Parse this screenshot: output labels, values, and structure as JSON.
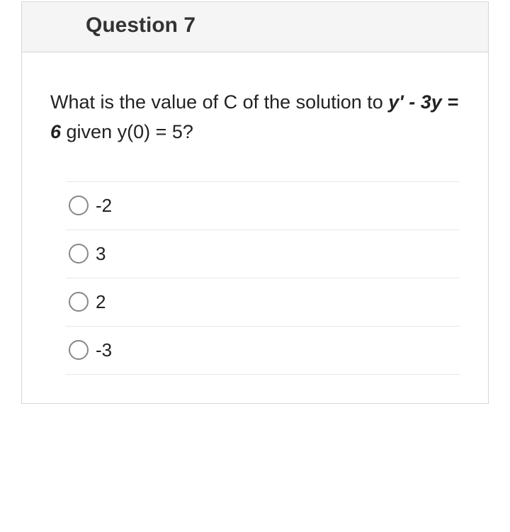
{
  "question": {
    "title": "Question 7",
    "prompt_pre": "What is the value of C of the solution to ",
    "prompt_equation": "y' - 3y = 6",
    "prompt_post": " given y(0) = 5?",
    "options": [
      {
        "label": "-2",
        "selected": false
      },
      {
        "label": "3",
        "selected": false
      },
      {
        "label": "2",
        "selected": false
      },
      {
        "label": "-3",
        "selected": false
      }
    ]
  },
  "styling": {
    "title_fontsize": 30,
    "body_fontsize": 27,
    "option_fontsize": 26,
    "header_bg": "#f5f5f5",
    "border_color": "#d6d6d6",
    "divider_color": "#e8e8e8",
    "radio_border": "#888888",
    "text_color": "#222222"
  }
}
